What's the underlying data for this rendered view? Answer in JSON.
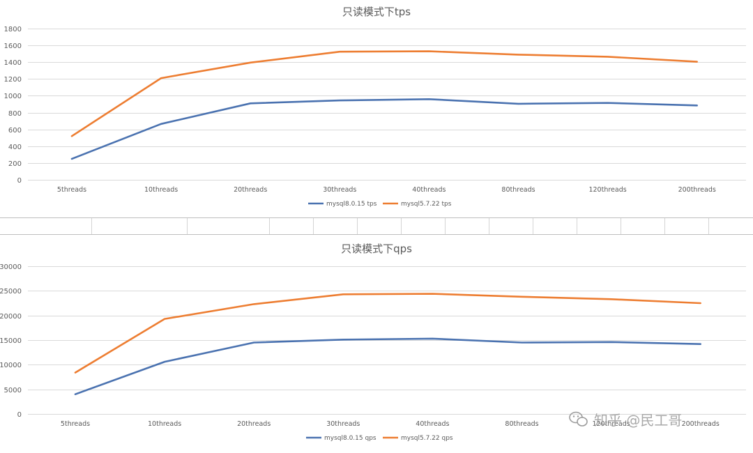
{
  "colors": {
    "mysql8": "#4a72b0",
    "mysql57": "#ed7d31",
    "grid": "#d9d9d9",
    "text": "#595959"
  },
  "watermark": {
    "text": "知乎 @民工哥",
    "icon": "wechat-icon"
  },
  "chart_data": [
    {
      "type": "line",
      "title": "只读模式下tps",
      "categories": [
        "5threads",
        "10threads",
        "20threads",
        "30threads",
        "40threads",
        "80threads",
        "120threads",
        "200threads"
      ],
      "ylim": [
        0,
        1800
      ],
      "yticks": [
        0,
        200,
        400,
        600,
        800,
        1000,
        1200,
        1400,
        1600,
        1800
      ],
      "grid": true,
      "legend": "bottom",
      "series": [
        {
          "name": "mysql8.0.15 tps",
          "color": "#4a72b0",
          "values": [
            250,
            665,
            910,
            945,
            960,
            905,
            915,
            885
          ]
        },
        {
          "name": "mysql5.7.22 tps",
          "color": "#ed7d31",
          "values": [
            520,
            1210,
            1395,
            1525,
            1530,
            1490,
            1465,
            1405
          ]
        }
      ]
    },
    {
      "type": "line",
      "title": "只读模式下qps",
      "categories": [
        "5threads",
        "10threads",
        "20threads",
        "30threads",
        "40threads",
        "80threads",
        "120threads",
        "200threads"
      ],
      "ylim": [
        0,
        30000
      ],
      "yticks": [
        0,
        5000,
        10000,
        15000,
        20000,
        25000,
        30000
      ],
      "grid": true,
      "legend": "bottom",
      "series": [
        {
          "name": "mysql8.0.15 qps",
          "color": "#4a72b0",
          "values": [
            4000,
            10600,
            14500,
            15100,
            15300,
            14500,
            14600,
            14200
          ]
        },
        {
          "name": "mysql5.7.22 qps",
          "color": "#ed7d31",
          "values": [
            8400,
            19300,
            22300,
            24300,
            24400,
            23800,
            23300,
            22500
          ]
        }
      ]
    }
  ]
}
